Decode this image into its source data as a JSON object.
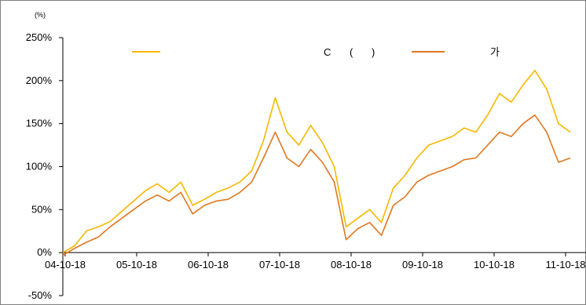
{
  "chart_data": {
    "type": "line",
    "unit_label": "(%)",
    "xlabel": "",
    "ylabel": "",
    "ylim": [
      -50,
      250
    ],
    "x_ticks": [
      "04-10-18",
      "05-10-18",
      "06-10-18",
      "07-10-18",
      "08-10-18",
      "09-10-18",
      "10-10-18",
      "11-10-18"
    ],
    "y_ticks": [
      "250%",
      "200%",
      "150%",
      "100%",
      "50%",
      "0%",
      "-50%"
    ],
    "legend": {
      "placement": "top",
      "entries": [
        {
          "text": "C ( )",
          "color": "#F5B800"
        },
        {
          "text": "가",
          "color": "#E07820"
        }
      ]
    },
    "x": [
      "04-10-18",
      "04-12-18",
      "05-02-18",
      "05-04-18",
      "05-06-18",
      "05-08-18",
      "05-10-18",
      "05-12-18",
      "06-02-18",
      "06-04-18",
      "06-06-18",
      "06-08-18",
      "06-10-18",
      "06-12-18",
      "07-02-18",
      "07-04-18",
      "07-06-18",
      "07-08-18",
      "07-10-18",
      "07-12-18",
      "08-02-18",
      "08-04-18",
      "08-06-18",
      "08-08-18",
      "08-10-18",
      "08-12-18",
      "09-02-18",
      "09-04-18",
      "09-06-18",
      "09-08-18",
      "09-10-18",
      "09-12-18",
      "10-02-18",
      "10-04-18",
      "10-06-18",
      "10-08-18",
      "10-10-18",
      "10-12-18",
      "11-02-18",
      "11-04-18",
      "11-06-18",
      "11-08-18",
      "11-10-18",
      "11-12-18"
    ],
    "series": [
      {
        "color": "#F5B800",
        "values": [
          0,
          8,
          25,
          30,
          36,
          48,
          60,
          72,
          80,
          70,
          82,
          55,
          62,
          70,
          75,
          82,
          95,
          130,
          180,
          140,
          125,
          148,
          128,
          100,
          30,
          40,
          50,
          35,
          75,
          90,
          110,
          125,
          130,
          135,
          145,
          140,
          160,
          185,
          175,
          195,
          212,
          190,
          150,
          140
        ]
      },
      {
        "color": "#E07820",
        "values": [
          -3,
          5,
          12,
          18,
          30,
          40,
          50,
          60,
          67,
          60,
          70,
          45,
          55,
          60,
          62,
          70,
          82,
          110,
          140,
          110,
          100,
          120,
          105,
          82,
          15,
          28,
          35,
          20,
          55,
          65,
          82,
          90,
          95,
          100,
          108,
          110,
          125,
          140,
          135,
          150,
          160,
          140,
          105,
          110
        ]
      }
    ]
  }
}
